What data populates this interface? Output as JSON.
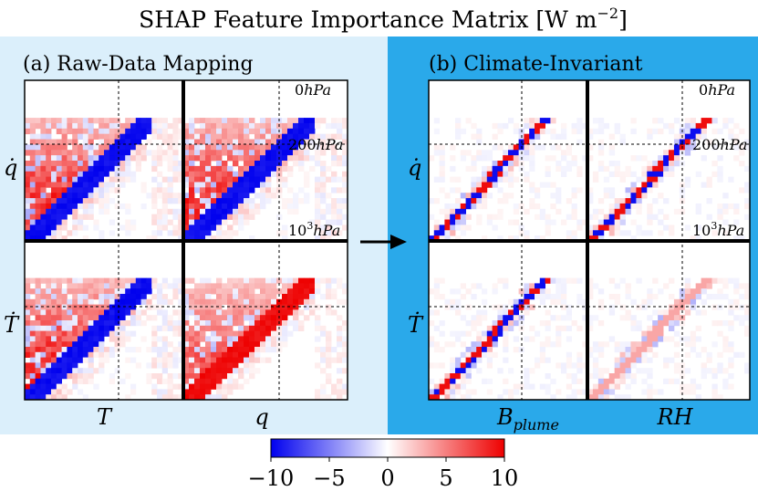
{
  "chart_data": {
    "type": "heatmap",
    "title": "SHAP Feature Importance Matrix [W m",
    "title_exponent": "−2",
    "title_close": "]",
    "panels": [
      {
        "id": "a",
        "label": "(a) Raw-Data Mapping",
        "background": "#dbeffb",
        "input_labels": [
          "T",
          "q"
        ],
        "output_labels": [
          "q̇",
          "Ṫ"
        ],
        "description": "Dense diagonal band of strong positive and negative contributions across tendencies"
      },
      {
        "id": "b",
        "label": "(b) Climate-Invariant",
        "background": "#2aa9ea",
        "input_labels": [
          "B",
          "RH"
        ],
        "input_label_subscripts": [
          "plume",
          ""
        ],
        "output_labels": [
          "q̇",
          "Ṫ"
        ],
        "description": "Sparse, narrow diagonal contributions"
      }
    ],
    "pressure_labels": {
      "top": "0",
      "middle": "200",
      "bottom": "10",
      "bottom_exp": "3",
      "unit": "hPa"
    },
    "colorbar": {
      "vmin": -10,
      "vmax": 10,
      "ticks": [
        "−10",
        "−5",
        "0",
        "5",
        "10"
      ],
      "colors": [
        "#0000ee",
        "#ffffff",
        "#ee0000"
      ]
    },
    "arrow": "right"
  }
}
